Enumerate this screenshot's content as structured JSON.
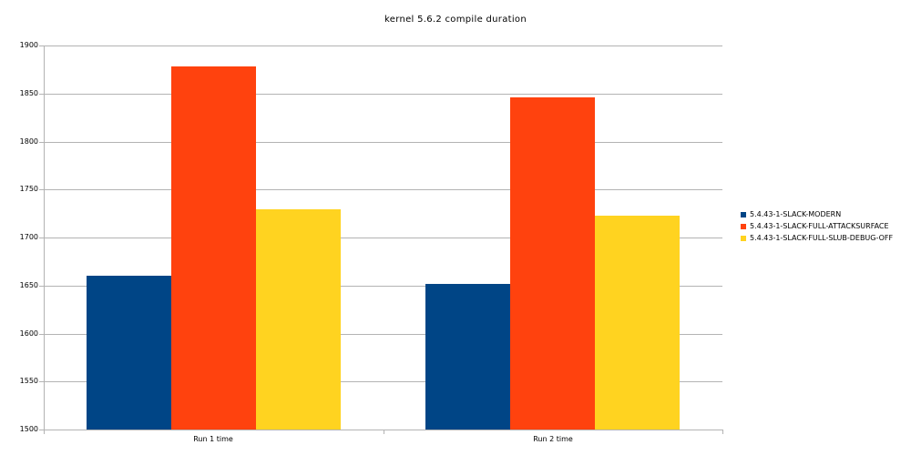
{
  "chart_data": {
    "type": "bar",
    "title": "kernel 5.6.2 compile duration",
    "categories": [
      "Run 1 time",
      "Run 2 time"
    ],
    "series": [
      {
        "name": "5.4.43-1-SLACK-MODERN",
        "color": "#004586",
        "values": [
          1660,
          1652
        ]
      },
      {
        "name": "5.4.43-1-SLACK-FULL-ATTACKSURFACE",
        "color": "#FF420E",
        "values": [
          1878,
          1846
        ]
      },
      {
        "name": "5.4.43-1-SLACK-FULL-SLUB-DEBUG-OFF",
        "color": "#FFD320",
        "values": [
          1729,
          1723
        ]
      }
    ],
    "xlabel": "",
    "ylabel": "",
    "ylim": [
      1500,
      1900
    ],
    "ytick_step": 50,
    "grid": "horizontal",
    "legend_position": "right",
    "colors": {
      "grid": "#b3b3b3",
      "axis": "#b3b3b3",
      "text": "#000000",
      "background": "#ffffff"
    }
  }
}
